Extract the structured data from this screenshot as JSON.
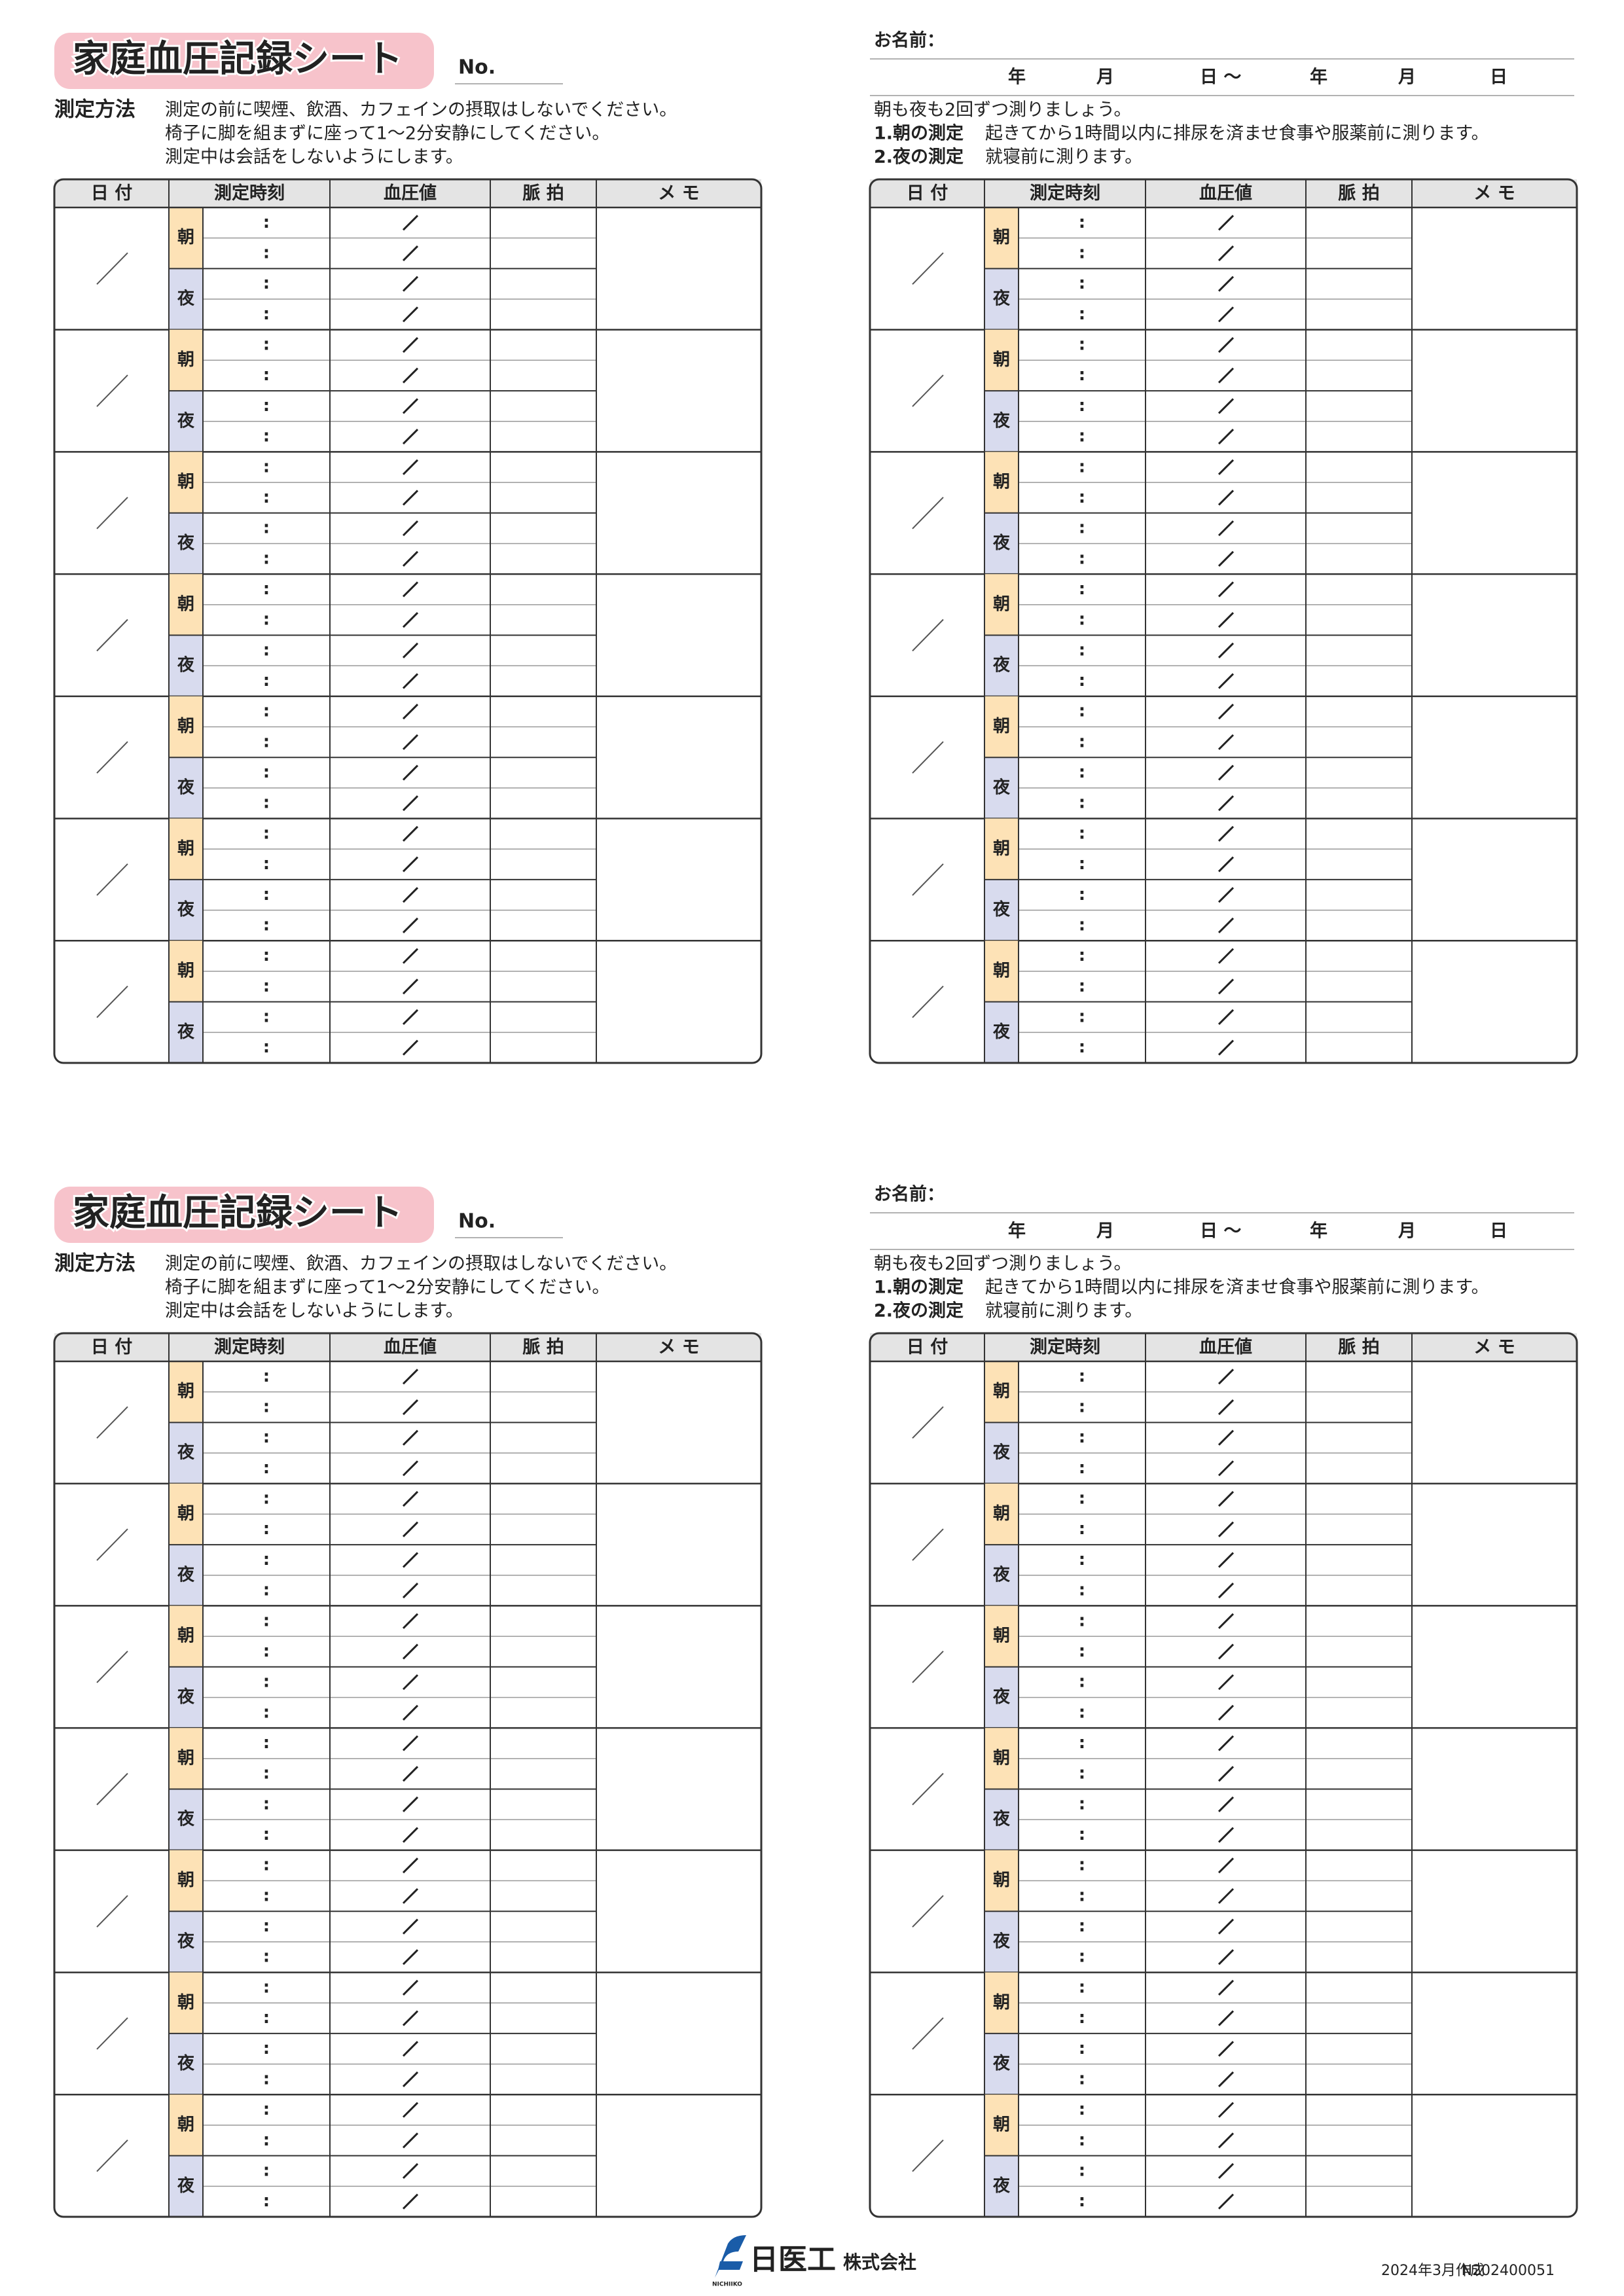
{
  "sheets": [
    {
      "title": "家庭血圧記録シート",
      "no_label": "No.",
      "method_label": "測定方法",
      "method_lines": [
        "測定の前に喫煙、飲酒、カフェインの摂取はしないでください。",
        "椅子に脚を組まずに座って1～2分安静にしてください。",
        "測定中は会話をしないようにします。"
      ],
      "name_label": "お名前：",
      "period": [
        "年",
        "月",
        "日 ～",
        "年",
        "月",
        "日"
      ],
      "note": "朝も夜も2回ずつ測りましょう。",
      "instructions": [
        {
          "label": "1.朝の測定",
          "text": "起きてから1時間以内に排尿を済ませ食事や服薬前に測ります。"
        },
        {
          "label": "2.夜の測定",
          "text": "就寝前に測ります。"
        }
      ],
      "table_headers": [
        "日 付",
        "測定時刻",
        "血圧値",
        "脈 拍",
        "メ モ"
      ],
      "morning": "朝",
      "evening": "夜",
      "time_sep": ":"
    },
    {
      "title": "家庭血圧記録シート",
      "no_label": "No.",
      "method_label": "測定方法",
      "method_lines": [
        "測定の前に喫煙、飲酒、カフェインの摂取はしないでください。",
        "椅子に脚を組まずに座って1～2分安静にしてください。",
        "測定中は会話をしないようにします。"
      ],
      "name_label": "お名前：",
      "period": [
        "年",
        "月",
        "日 ～",
        "年",
        "月",
        "日"
      ],
      "note": "朝も夜も2回ずつ測りましょう。",
      "instructions": [
        {
          "label": "1.朝の測定",
          "text": "起きてから1時間以内に排尿を済ませ食事や服薬前に測ります。"
        },
        {
          "label": "2.夜の測定",
          "text": "就寝前に測ります。"
        }
      ],
      "table_headers": [
        "日 付",
        "測定時刻",
        "血圧値",
        "脈 拍",
        "メ モ"
      ],
      "morning": "朝",
      "evening": "夜",
      "time_sep": ":"
    }
  ],
  "footer": {
    "logo_name": "日医工",
    "logo_suffix": "株式会社",
    "logo_mark_text": "NICHIIKO",
    "date": "2024年3月作成",
    "code": "N202400051"
  }
}
